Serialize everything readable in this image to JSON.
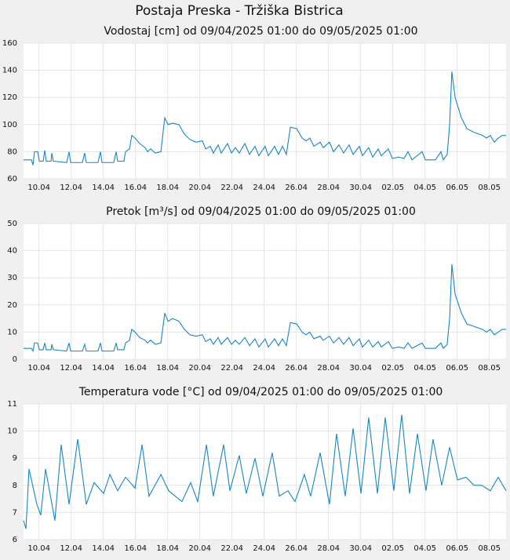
{
  "title": "Postaja Preska - Tržiška Bistrica",
  "chart_data": [
    {
      "type": "line",
      "title": "Vodostaj [cm] od 09/04/2025 01:00 do 09/05/2025 01:00",
      "color": "#1586c6",
      "grid": true,
      "xlim": [
        0,
        30
      ],
      "xticks": [
        {
          "value": 0.96,
          "label": "10.04"
        },
        {
          "value": 2.96,
          "label": "12.04"
        },
        {
          "value": 4.96,
          "label": "14.04"
        },
        {
          "value": 6.96,
          "label": "16.04"
        },
        {
          "value": 8.96,
          "label": "18.04"
        },
        {
          "value": 10.96,
          "label": "20.04"
        },
        {
          "value": 12.96,
          "label": "22.04"
        },
        {
          "value": 14.96,
          "label": "24.04"
        },
        {
          "value": 16.96,
          "label": "26.04"
        },
        {
          "value": 18.96,
          "label": "28.04"
        },
        {
          "value": 20.96,
          "label": "30.04"
        },
        {
          "value": 22.96,
          "label": "02.05"
        },
        {
          "value": 24.96,
          "label": "04.05"
        },
        {
          "value": 26.96,
          "label": "06.05"
        },
        {
          "value": 28.96,
          "label": "08.05"
        }
      ],
      "ylim": [
        60,
        160
      ],
      "yticks": [
        60,
        80,
        100,
        120,
        140,
        160
      ],
      "x": [
        0,
        0.49,
        0.59,
        0.68,
        0.88,
        0.98,
        1.22,
        1.32,
        1.41,
        1.71,
        1.76,
        1.85,
        2.68,
        2.83,
        2.93,
        3.66,
        3.8,
        3.9,
        4.63,
        4.78,
        4.88,
        5.61,
        5.76,
        5.85,
        6.24,
        6.34,
        6.59,
        6.73,
        6.93,
        7.22,
        7.56,
        7.71,
        7.9,
        8.2,
        8.54,
        8.78,
        8.98,
        9.27,
        9.66,
        10.0,
        10.34,
        10.73,
        11.12,
        11.32,
        11.61,
        11.8,
        12.1,
        12.29,
        12.68,
        12.93,
        13.17,
        13.41,
        13.76,
        14.05,
        14.39,
        14.63,
        15.02,
        15.22,
        15.61,
        15.85,
        16.1,
        16.34,
        16.59,
        16.98,
        17.32,
        17.56,
        17.8,
        18.05,
        18.44,
        18.63,
        19.02,
        19.27,
        19.61,
        19.9,
        20.24,
        20.49,
        20.88,
        21.07,
        21.46,
        21.71,
        22.05,
        22.24,
        22.68,
        22.93,
        23.32,
        23.66,
        23.9,
        24.15,
        24.78,
        24.98,
        25.61,
        25.95,
        26.1,
        26.34,
        26.49,
        26.63,
        26.83,
        27.22,
        27.56,
        28.05,
        28.54,
        28.78,
        29.02,
        29.27,
        29.51,
        29.76,
        30
      ],
      "values": [
        74,
        74,
        70,
        80,
        80,
        73,
        73,
        81,
        73,
        73,
        79,
        73,
        72,
        80,
        72,
        72,
        79,
        72,
        72,
        80,
        72,
        72,
        80,
        73,
        73,
        80,
        82,
        92,
        90,
        86,
        83,
        80,
        82,
        79,
        80,
        105,
        100,
        101,
        100,
        93,
        89,
        87,
        88,
        82,
        84,
        79,
        85,
        79,
        86,
        79,
        83,
        79,
        86,
        78,
        84,
        77,
        84,
        77,
        84,
        78,
        84,
        78,
        98,
        97,
        90,
        88,
        90,
        84,
        87,
        83,
        87,
        80,
        85,
        79,
        85,
        78,
        84,
        77,
        83,
        76,
        82,
        77,
        82,
        75,
        76,
        75,
        80,
        74,
        80,
        74,
        74,
        80,
        74,
        78,
        100,
        139,
        120,
        105,
        97,
        94,
        92,
        90,
        92,
        87,
        90,
        92,
        92
      ]
    },
    {
      "type": "line",
      "title": "Pretok [m³/s] od 09/04/2025 01:00 do 09/05/2025 01:00",
      "color": "#1586c6",
      "grid": true,
      "xlim": [
        0,
        30
      ],
      "xticks": [
        {
          "value": 0.96,
          "label": "10.04"
        },
        {
          "value": 2.96,
          "label": "12.04"
        },
        {
          "value": 4.96,
          "label": "14.04"
        },
        {
          "value": 6.96,
          "label": "16.04"
        },
        {
          "value": 8.96,
          "label": "18.04"
        },
        {
          "value": 10.96,
          "label": "20.04"
        },
        {
          "value": 12.96,
          "label": "22.04"
        },
        {
          "value": 14.96,
          "label": "24.04"
        },
        {
          "value": 16.96,
          "label": "26.04"
        },
        {
          "value": 18.96,
          "label": "28.04"
        },
        {
          "value": 20.96,
          "label": "30.04"
        },
        {
          "value": 22.96,
          "label": "02.05"
        },
        {
          "value": 24.96,
          "label": "04.05"
        },
        {
          "value": 26.96,
          "label": "06.05"
        },
        {
          "value": 28.96,
          "label": "08.05"
        }
      ],
      "ylim": [
        0,
        50
      ],
      "yticks": [
        0,
        10,
        20,
        30,
        40,
        50
      ],
      "x": [
        0,
        0.49,
        0.59,
        0.68,
        0.88,
        0.98,
        1.22,
        1.32,
        1.41,
        1.71,
        1.76,
        1.85,
        2.68,
        2.83,
        2.93,
        3.66,
        3.8,
        3.9,
        4.63,
        4.78,
        4.88,
        5.61,
        5.76,
        5.85,
        6.24,
        6.34,
        6.59,
        6.73,
        6.93,
        7.22,
        7.56,
        7.71,
        7.9,
        8.2,
        8.54,
        8.78,
        8.98,
        9.27,
        9.66,
        10.0,
        10.34,
        10.73,
        11.12,
        11.32,
        11.61,
        11.8,
        12.1,
        12.29,
        12.68,
        12.93,
        13.17,
        13.41,
        13.76,
        14.05,
        14.39,
        14.63,
        15.02,
        15.22,
        15.61,
        15.85,
        16.1,
        16.34,
        16.59,
        16.98,
        17.32,
        17.56,
        17.8,
        18.05,
        18.44,
        18.63,
        19.02,
        19.27,
        19.61,
        19.9,
        20.24,
        20.49,
        20.88,
        21.07,
        21.46,
        21.71,
        22.05,
        22.24,
        22.68,
        22.93,
        23.32,
        23.66,
        23.9,
        24.15,
        24.78,
        24.98,
        25.61,
        25.95,
        26.1,
        26.34,
        26.49,
        26.63,
        26.83,
        27.22,
        27.56,
        28.05,
        28.54,
        28.78,
        29.02,
        29.27,
        29.51,
        29.76,
        30
      ],
      "values": [
        4,
        4,
        3,
        6,
        6,
        3.5,
        3.5,
        6,
        3.5,
        3.5,
        5.5,
        3.5,
        3,
        6,
        3,
        3,
        5.5,
        3,
        3,
        6,
        3,
        3,
        6,
        3.5,
        3.5,
        6,
        7,
        11,
        10,
        8,
        7,
        6,
        7,
        5.5,
        6,
        17,
        14,
        15,
        14,
        11,
        9,
        8.5,
        9,
        6.5,
        7.5,
        5.5,
        8,
        5.5,
        8,
        5.5,
        7,
        5.5,
        8,
        5,
        7.5,
        4.5,
        7.5,
        4.5,
        7.5,
        5,
        7.5,
        5,
        13.5,
        13,
        10,
        9,
        10,
        7.5,
        8.5,
        7,
        8.5,
        6,
        8,
        5.5,
        8,
        5,
        7.5,
        4.5,
        7,
        4.5,
        6.5,
        4.5,
        6.5,
        4,
        4.5,
        4,
        6,
        4,
        6,
        4,
        4,
        6,
        4,
        5.5,
        15,
        35,
        24,
        17,
        13,
        12,
        11,
        10,
        11,
        9,
        10,
        11,
        11
      ]
    },
    {
      "type": "line",
      "title": "Temperatura vode [°C] od 09/04/2025 01:00 do 09/05/2025 01:00",
      "color": "#1586c6",
      "grid": true,
      "xlim": [
        0,
        30
      ],
      "xticks": [
        {
          "value": 0.96,
          "label": "10.04"
        },
        {
          "value": 2.96,
          "label": "12.04"
        },
        {
          "value": 4.96,
          "label": "14.04"
        },
        {
          "value": 6.96,
          "label": "16.04"
        },
        {
          "value": 8.96,
          "label": "18.04"
        },
        {
          "value": 10.96,
          "label": "20.04"
        },
        {
          "value": 12.96,
          "label": "22.04"
        },
        {
          "value": 14.96,
          "label": "24.04"
        },
        {
          "value": 16.96,
          "label": "26.04"
        },
        {
          "value": 18.96,
          "label": "28.04"
        },
        {
          "value": 20.96,
          "label": "30.04"
        },
        {
          "value": 22.96,
          "label": "02.05"
        },
        {
          "value": 24.96,
          "label": "04.05"
        },
        {
          "value": 26.96,
          "label": "06.05"
        },
        {
          "value": 28.96,
          "label": "08.05"
        }
      ],
      "ylim": [
        6,
        11
      ],
      "yticks": [
        6,
        7,
        8,
        9,
        10,
        11
      ],
      "x": [
        0,
        0.15,
        0.34,
        0.83,
        1.07,
        1.37,
        1.95,
        2.34,
        2.83,
        3.37,
        3.9,
        4.39,
        4.98,
        5.37,
        5.85,
        6.34,
        6.93,
        7.37,
        7.8,
        8.54,
        9.02,
        9.85,
        10.39,
        10.83,
        11.37,
        11.8,
        12.44,
        12.83,
        13.41,
        13.85,
        14.39,
        14.88,
        15.46,
        15.9,
        16.44,
        16.88,
        17.46,
        17.85,
        18.44,
        19.02,
        19.46,
        20.0,
        20.49,
        20.98,
        21.46,
        22.0,
        22.49,
        23.02,
        23.51,
        24.0,
        24.49,
        25.02,
        25.46,
        26.0,
        26.49,
        26.98,
        27.51,
        28.0,
        28.49,
        29.02,
        29.51,
        30
      ],
      "values": [
        6.7,
        6.4,
        8.6,
        7.3,
        6.9,
        8.6,
        6.7,
        9.5,
        7.3,
        9.7,
        7.3,
        8.1,
        7.7,
        8.4,
        7.8,
        8.3,
        7.9,
        9.5,
        7.6,
        8.4,
        7.8,
        7.4,
        8.1,
        7.4,
        9.5,
        7.6,
        9.5,
        7.8,
        9.1,
        7.7,
        9.0,
        7.6,
        9.2,
        7.6,
        7.8,
        7.4,
        8.4,
        7.6,
        9.2,
        7.3,
        9.9,
        7.6,
        10.1,
        7.7,
        10.5,
        7.7,
        10.5,
        7.8,
        10.6,
        7.7,
        9.9,
        7.8,
        9.7,
        8.0,
        9.4,
        8.2,
        8.3,
        8.0,
        8.0,
        7.8,
        8.3,
        7.8
      ]
    }
  ]
}
